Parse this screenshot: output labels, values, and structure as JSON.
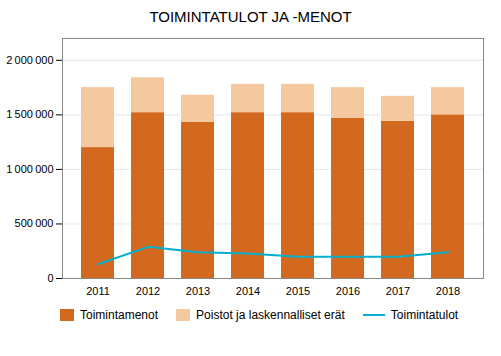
{
  "chart_data": {
    "type": "bar",
    "title": "TOIMINTATULOT JA -MENOT",
    "categories": [
      "2011",
      "2012",
      "2013",
      "2014",
      "2015",
      "2016",
      "2017",
      "2018"
    ],
    "series": [
      {
        "name": "Toimintamenot",
        "type": "bar",
        "color": "#D2691E",
        "values": [
          1200000,
          1520000,
          1430000,
          1520000,
          1520000,
          1470000,
          1440000,
          1500000
        ]
      },
      {
        "name": "Poistot ja laskennalliset erät",
        "type": "bar",
        "color": "#F5C9A0",
        "values": [
          550000,
          320000,
          250000,
          260000,
          260000,
          280000,
          230000,
          250000
        ]
      },
      {
        "name": "Toimintatulot",
        "type": "line",
        "color": "#00AECD",
        "values": [
          130000,
          290000,
          240000,
          230000,
          200000,
          200000,
          200000,
          240000
        ]
      }
    ],
    "stacked": true,
    "ylim": [
      0,
      2200000
    ],
    "yticks": [
      0,
      {
        "value": 500000,
        "label": "500 000"
      },
      {
        "value": 1000000,
        "label": "1 000 000"
      },
      {
        "value": 1500000,
        "label": "1 500 000"
      },
      {
        "value": 2000000,
        "label": "2 000 000"
      }
    ],
    "grid": true,
    "legend": "bottom"
  }
}
